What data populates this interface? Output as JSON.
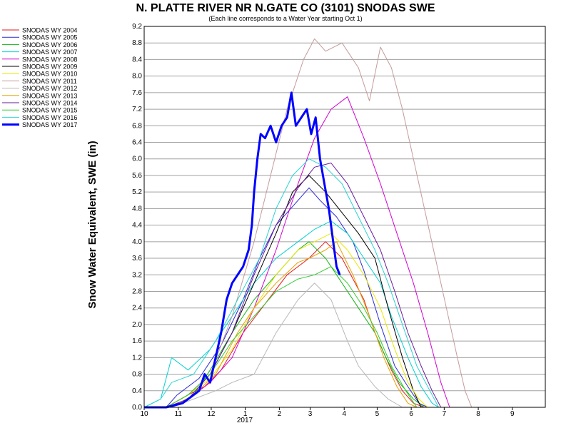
{
  "chart_data": {
    "type": "line",
    "title": "N. PLATTE RIVER NR N.GATE CO (3101) SNODAS SWE",
    "subtitle": "(Each line corresponds to a Water Year starting Oct 1)",
    "ylabel": "Snow Water Equivalent, SWE (in)",
    "xlabel": "",
    "year_label": "2017",
    "ylim": [
      0,
      9.2
    ],
    "xlim": [
      0,
      365
    ],
    "grid": true,
    "legend_position": "left",
    "x_ticks": [
      {
        "label": "10",
        "day": 0
      },
      {
        "label": "11",
        "day": 31
      },
      {
        "label": "12",
        "day": 61
      },
      {
        "label": "1",
        "day": 92
      },
      {
        "label": "2",
        "day": 123
      },
      {
        "label": "3",
        "day": 151
      },
      {
        "label": "4",
        "day": 182
      },
      {
        "label": "5",
        "day": 212
      },
      {
        "label": "6",
        "day": 243
      },
      {
        "label": "7",
        "day": 273
      },
      {
        "label": "8",
        "day": 304
      },
      {
        "label": "9",
        "day": 335
      }
    ],
    "y_ticks": [
      "0.0",
      "0.4",
      "0.8",
      "1.2",
      "1.6",
      "2.0",
      "2.4",
      "2.8",
      "3.2",
      "3.6",
      "4.0",
      "4.4",
      "4.8",
      "5.2",
      "5.6",
      "6.0",
      "6.4",
      "6.8",
      "7.2",
      "7.6",
      "8.0",
      "8.4",
      "8.8",
      "9.2"
    ],
    "series": [
      {
        "name": "SNODAS WY 2004",
        "color": "#e41a1c",
        "width": 1,
        "points": [
          [
            0,
            0
          ],
          [
            20,
            0
          ],
          [
            40,
            0.3
          ],
          [
            55,
            0.5
          ],
          [
            70,
            0.9
          ],
          [
            90,
            1.8
          ],
          [
            110,
            2.5
          ],
          [
            130,
            3.2
          ],
          [
            150,
            3.6
          ],
          [
            165,
            4.0
          ],
          [
            180,
            3.6
          ],
          [
            200,
            2.6
          ],
          [
            210,
            1.8
          ],
          [
            225,
            0.9
          ],
          [
            235,
            0.4
          ],
          [
            245,
            0.1
          ],
          [
            255,
            0
          ]
        ]
      },
      {
        "name": "SNODAS WY 2005",
        "color": "#2b2bd4",
        "width": 1,
        "points": [
          [
            0,
            0
          ],
          [
            20,
            0
          ],
          [
            30,
            0.3
          ],
          [
            50,
            0.7
          ],
          [
            70,
            1.5
          ],
          [
            90,
            2.6
          ],
          [
            105,
            3.6
          ],
          [
            120,
            4.4
          ],
          [
            140,
            5.0
          ],
          [
            150,
            5.3
          ],
          [
            160,
            5.0
          ],
          [
            175,
            4.6
          ],
          [
            190,
            4.0
          ],
          [
            200,
            3.3
          ],
          [
            215,
            2.0
          ],
          [
            228,
            1.0
          ],
          [
            240,
            0.5
          ],
          [
            250,
            0.1
          ],
          [
            258,
            0
          ]
        ]
      },
      {
        "name": "SNODAS WY 2006",
        "color": "#12b312",
        "width": 1,
        "points": [
          [
            0,
            0
          ],
          [
            25,
            0
          ],
          [
            45,
            0.3
          ],
          [
            60,
            0.9
          ],
          [
            80,
            1.8
          ],
          [
            100,
            2.6
          ],
          [
            120,
            3.2
          ],
          [
            140,
            3.8
          ],
          [
            150,
            4.0
          ],
          [
            165,
            3.6
          ],
          [
            180,
            3.0
          ],
          [
            195,
            2.4
          ],
          [
            210,
            1.8
          ],
          [
            220,
            1.2
          ],
          [
            232,
            0.6
          ],
          [
            245,
            0.2
          ],
          [
            255,
            0
          ]
        ]
      },
      {
        "name": "SNODAS WY 2007",
        "color": "#00d0d0",
        "width": 1,
        "points": [
          [
            0,
            0
          ],
          [
            15,
            0.2
          ],
          [
            25,
            1.2
          ],
          [
            40,
            0.9
          ],
          [
            60,
            1.4
          ],
          [
            80,
            2.2
          ],
          [
            100,
            3.0
          ],
          [
            120,
            3.6
          ],
          [
            140,
            4.0
          ],
          [
            155,
            4.3
          ],
          [
            170,
            4.5
          ],
          [
            185,
            4.2
          ],
          [
            200,
            3.6
          ],
          [
            215,
            3.0
          ],
          [
            225,
            2.2
          ],
          [
            240,
            1.2
          ],
          [
            252,
            0.5
          ],
          [
            262,
            0.1
          ],
          [
            268,
            0
          ]
        ]
      },
      {
        "name": "SNODAS WY 2008",
        "color": "#d400d4",
        "width": 1,
        "points": [
          [
            0,
            0
          ],
          [
            20,
            0
          ],
          [
            40,
            0.2
          ],
          [
            60,
            0.6
          ],
          [
            80,
            1.2
          ],
          [
            100,
            2.4
          ],
          [
            120,
            3.8
          ],
          [
            140,
            5.4
          ],
          [
            155,
            6.5
          ],
          [
            170,
            7.2
          ],
          [
            185,
            7.5
          ],
          [
            200,
            6.5
          ],
          [
            215,
            5.4
          ],
          [
            230,
            4.2
          ],
          [
            245,
            3.0
          ],
          [
            258,
            1.8
          ],
          [
            270,
            0.6
          ],
          [
            278,
            0
          ]
        ]
      },
      {
        "name": "SNODAS WY 2009",
        "color": "#000000",
        "width": 1,
        "points": [
          [
            0,
            0
          ],
          [
            20,
            0
          ],
          [
            40,
            0.3
          ],
          [
            60,
            0.8
          ],
          [
            80,
            1.8
          ],
          [
            100,
            3.0
          ],
          [
            120,
            4.2
          ],
          [
            135,
            5.2
          ],
          [
            150,
            5.6
          ],
          [
            165,
            5.2
          ],
          [
            180,
            4.7
          ],
          [
            195,
            4.2
          ],
          [
            210,
            3.6
          ],
          [
            222,
            2.4
          ],
          [
            235,
            1.2
          ],
          [
            245,
            0.4
          ],
          [
            252,
            0
          ]
        ]
      },
      {
        "name": "SNODAS WY 2010",
        "color": "#e8e800",
        "width": 1,
        "points": [
          [
            0,
            0
          ],
          [
            20,
            0
          ],
          [
            40,
            0.3
          ],
          [
            60,
            0.7
          ],
          [
            80,
            1.4
          ],
          [
            100,
            2.4
          ],
          [
            120,
            3.2
          ],
          [
            140,
            3.8
          ],
          [
            155,
            4.0
          ],
          [
            170,
            4.2
          ],
          [
            185,
            3.8
          ],
          [
            200,
            3.2
          ],
          [
            215,
            2.4
          ],
          [
            228,
            1.4
          ],
          [
            240,
            0.6
          ],
          [
            250,
            0.2
          ],
          [
            258,
            0
          ]
        ]
      },
      {
        "name": "SNODAS WY 2011",
        "color": "#c39b9b",
        "width": 1,
        "points": [
          [
            0,
            0
          ],
          [
            20,
            0
          ],
          [
            40,
            0.2
          ],
          [
            60,
            0.8
          ],
          [
            80,
            2.2
          ],
          [
            100,
            4.0
          ],
          [
            115,
            5.6
          ],
          [
            130,
            7.2
          ],
          [
            145,
            8.4
          ],
          [
            155,
            8.9
          ],
          [
            165,
            8.6
          ],
          [
            180,
            8.8
          ],
          [
            195,
            8.2
          ],
          [
            205,
            7.4
          ],
          [
            215,
            8.7
          ],
          [
            225,
            8.2
          ],
          [
            235,
            7.2
          ],
          [
            245,
            6.0
          ],
          [
            255,
            4.8
          ],
          [
            265,
            3.6
          ],
          [
            275,
            2.4
          ],
          [
            285,
            1.2
          ],
          [
            292,
            0.4
          ],
          [
            298,
            0
          ]
        ]
      },
      {
        "name": "SNODAS WY 2012",
        "color": "#b8b8b8",
        "width": 1,
        "points": [
          [
            0,
            0
          ],
          [
            25,
            0
          ],
          [
            45,
            0.2
          ],
          [
            65,
            0.4
          ],
          [
            80,
            0.6
          ],
          [
            100,
            0.8
          ],
          [
            120,
            1.8
          ],
          [
            140,
            2.6
          ],
          [
            155,
            3.0
          ],
          [
            170,
            2.6
          ],
          [
            185,
            1.6
          ],
          [
            195,
            1.0
          ],
          [
            210,
            0.5
          ],
          [
            222,
            0.2
          ],
          [
            235,
            0
          ]
        ]
      },
      {
        "name": "SNODAS WY 2013",
        "color": "#e8a000",
        "width": 1,
        "points": [
          [
            0,
            0
          ],
          [
            25,
            0
          ],
          [
            45,
            0.3
          ],
          [
            65,
            0.8
          ],
          [
            85,
            1.8
          ],
          [
            100,
            2.4
          ],
          [
            120,
            3.0
          ],
          [
            140,
            3.5
          ],
          [
            150,
            3.6
          ],
          [
            165,
            3.8
          ],
          [
            175,
            4.0
          ],
          [
            190,
            3.2
          ],
          [
            205,
            2.2
          ],
          [
            218,
            1.2
          ],
          [
            230,
            0.5
          ],
          [
            240,
            0.1
          ],
          [
            248,
            0
          ]
        ]
      },
      {
        "name": "SNODAS WY 2014",
        "color": "#6a1b9a",
        "width": 1,
        "points": [
          [
            0,
            0
          ],
          [
            20,
            0
          ],
          [
            40,
            0.2
          ],
          [
            60,
            0.8
          ],
          [
            80,
            1.8
          ],
          [
            100,
            3.2
          ],
          [
            120,
            4.4
          ],
          [
            140,
            5.3
          ],
          [
            155,
            5.8
          ],
          [
            170,
            5.9
          ],
          [
            185,
            5.4
          ],
          [
            200,
            4.6
          ],
          [
            215,
            3.8
          ],
          [
            228,
            2.8
          ],
          [
            240,
            1.8
          ],
          [
            252,
            1.0
          ],
          [
            262,
            0.4
          ],
          [
            270,
            0
          ]
        ]
      },
      {
        "name": "SNODAS WY 2015",
        "color": "#33cc33",
        "width": 1,
        "points": [
          [
            0,
            0
          ],
          [
            20,
            0
          ],
          [
            40,
            0.3
          ],
          [
            60,
            0.8
          ],
          [
            80,
            1.6
          ],
          [
            100,
            2.2
          ],
          [
            120,
            2.8
          ],
          [
            140,
            3.1
          ],
          [
            155,
            3.2
          ],
          [
            170,
            3.4
          ],
          [
            185,
            3.0
          ],
          [
            200,
            2.4
          ],
          [
            212,
            1.8
          ],
          [
            225,
            1.0
          ],
          [
            238,
            0.4
          ],
          [
            248,
            0
          ]
        ]
      },
      {
        "name": "SNODAS WY 2016",
        "color": "#29d3d3",
        "width": 1,
        "points": [
          [
            0,
            0
          ],
          [
            15,
            0.2
          ],
          [
            25,
            0.6
          ],
          [
            45,
            0.8
          ],
          [
            65,
            1.6
          ],
          [
            85,
            2.6
          ],
          [
            105,
            3.6
          ],
          [
            120,
            4.8
          ],
          [
            135,
            5.6
          ],
          [
            150,
            6.0
          ],
          [
            165,
            5.8
          ],
          [
            180,
            5.4
          ],
          [
            195,
            4.6
          ],
          [
            210,
            3.8
          ],
          [
            222,
            3.0
          ],
          [
            235,
            2.0
          ],
          [
            248,
            1.0
          ],
          [
            260,
            0.4
          ],
          [
            268,
            0
          ]
        ]
      },
      {
        "name": "SNODAS WY 2017",
        "color": "#0000ff",
        "width": 3,
        "points": [
          [
            0,
            0
          ],
          [
            20,
            0
          ],
          [
            35,
            0.1
          ],
          [
            50,
            0.4
          ],
          [
            55,
            0.8
          ],
          [
            60,
            0.6
          ],
          [
            65,
            1.2
          ],
          [
            70,
            1.8
          ],
          [
            75,
            2.6
          ],
          [
            80,
            3.0
          ],
          [
            85,
            3.2
          ],
          [
            90,
            3.4
          ],
          [
            95,
            3.8
          ],
          [
            98,
            4.4
          ],
          [
            100,
            5.2
          ],
          [
            103,
            6.0
          ],
          [
            106,
            6.6
          ],
          [
            110,
            6.5
          ],
          [
            115,
            6.8
          ],
          [
            120,
            6.4
          ],
          [
            125,
            6.8
          ],
          [
            130,
            7.0
          ],
          [
            134,
            7.6
          ],
          [
            138,
            6.8
          ],
          [
            143,
            7.0
          ],
          [
            148,
            7.2
          ],
          [
            152,
            6.6
          ],
          [
            156,
            7.0
          ],
          [
            160,
            6.0
          ],
          [
            164,
            5.4
          ],
          [
            168,
            4.8
          ],
          [
            172,
            4.0
          ],
          [
            175,
            3.4
          ],
          [
            178,
            3.2
          ]
        ]
      }
    ]
  }
}
